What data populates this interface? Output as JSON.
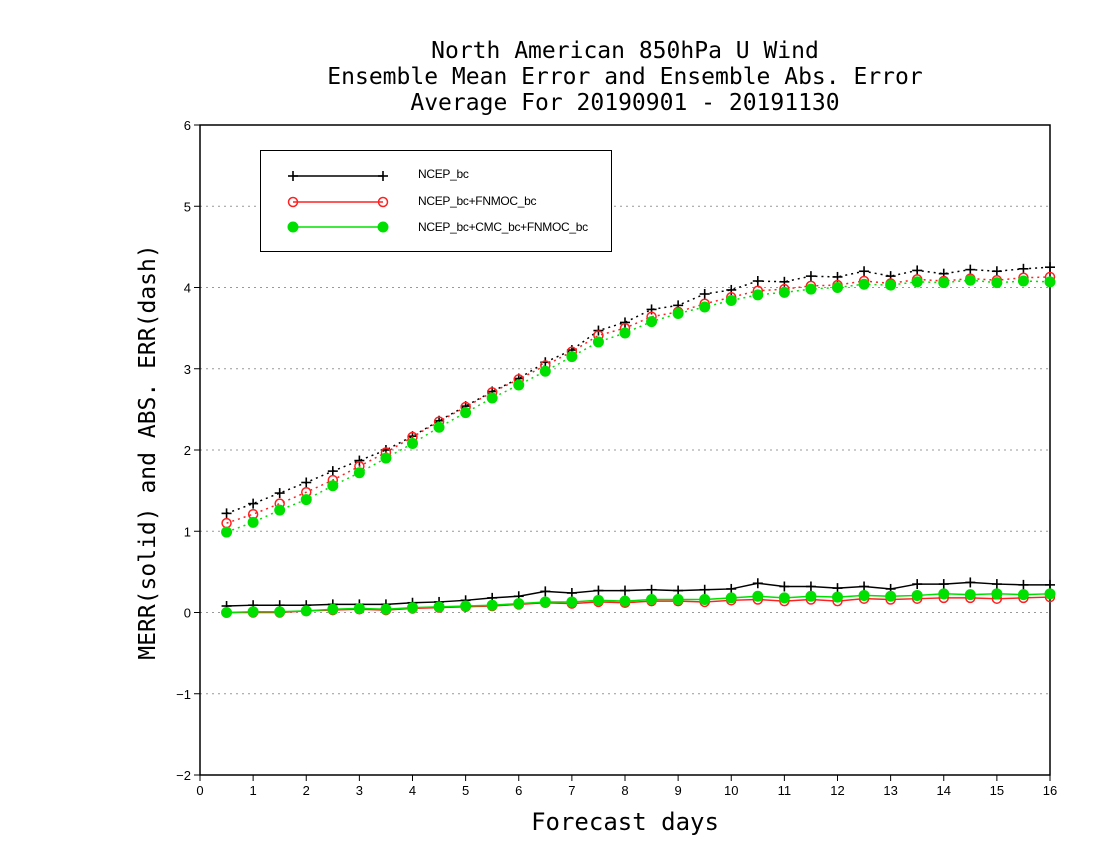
{
  "chart_data": {
    "type": "line",
    "title_lines": [
      "North American 850hPa U Wind",
      "Ensemble Mean Error and Ensemble Abs. Error",
      "Average For 20190901 - 20191130"
    ],
    "xlabel": "Forecast days",
    "ylabel": "MERR(solid) and ABS. ERR(dash)",
    "xlim": [
      0,
      16
    ],
    "ylim": [
      -2,
      6
    ],
    "x_ticks": [
      "0",
      "1",
      "2",
      "3",
      "4",
      "5",
      "6",
      "7",
      "8",
      "9",
      "10",
      "11",
      "12",
      "13",
      "14",
      "15",
      "16"
    ],
    "y_ticks": [
      "-2",
      "-1",
      "0",
      "1",
      "2",
      "3",
      "4",
      "5",
      "6"
    ],
    "grid": "horizontal dotted",
    "legend_position": "top-left",
    "x": [
      0.5,
      1,
      1.5,
      2,
      2.5,
      3,
      3.5,
      4,
      4.5,
      5,
      5.5,
      6,
      6.5,
      7,
      7.5,
      8,
      8.5,
      9,
      9.5,
      10,
      10.5,
      11,
      11.5,
      12,
      12.5,
      13,
      13.5,
      14,
      14.5,
      15,
      15.5,
      16
    ],
    "series": [
      {
        "name": "NCEP_bc",
        "color": "#000000",
        "marker": "plus",
        "merr": [
          0.08,
          0.09,
          0.09,
          0.09,
          0.1,
          0.1,
          0.1,
          0.12,
          0.13,
          0.15,
          0.18,
          0.2,
          0.26,
          0.24,
          0.27,
          0.27,
          0.28,
          0.27,
          0.28,
          0.29,
          0.36,
          0.32,
          0.32,
          0.3,
          0.32,
          0.29,
          0.35,
          0.35,
          0.37,
          0.35,
          0.34,
          0.34
        ],
        "abs_err": [
          1.22,
          1.34,
          1.47,
          1.6,
          1.74,
          1.87,
          2.0,
          2.17,
          2.36,
          2.54,
          2.72,
          2.88,
          3.08,
          3.23,
          3.47,
          3.57,
          3.73,
          3.78,
          3.92,
          3.97,
          4.08,
          4.07,
          4.14,
          4.13,
          4.2,
          4.14,
          4.21,
          4.17,
          4.22,
          4.2,
          4.23,
          4.25
        ]
      },
      {
        "name": "NCEP_bc+FNMOC_bc",
        "color": "#ff2020",
        "marker": "open-circle",
        "merr": [
          0.0,
          0.0,
          0.0,
          0.02,
          0.03,
          0.04,
          0.03,
          0.05,
          0.06,
          0.07,
          0.08,
          0.1,
          0.12,
          0.11,
          0.13,
          0.12,
          0.14,
          0.14,
          0.13,
          0.15,
          0.16,
          0.14,
          0.16,
          0.14,
          0.17,
          0.16,
          0.17,
          0.18,
          0.18,
          0.17,
          0.18,
          0.19
        ],
        "abs_err": [
          1.1,
          1.21,
          1.34,
          1.48,
          1.63,
          1.8,
          1.97,
          2.16,
          2.35,
          2.53,
          2.71,
          2.87,
          3.04,
          3.21,
          3.41,
          3.5,
          3.64,
          3.7,
          3.8,
          3.88,
          3.96,
          3.98,
          4.02,
          4.03,
          4.08,
          4.05,
          4.1,
          4.08,
          4.11,
          4.09,
          4.12,
          4.13
        ]
      },
      {
        "name": "NCEP_bc+CMC_bc+FNMOC_bc",
        "color": "#00e000",
        "marker": "filled-circle",
        "merr": [
          0.0,
          0.01,
          0.01,
          0.02,
          0.04,
          0.05,
          0.04,
          0.06,
          0.07,
          0.08,
          0.09,
          0.11,
          0.13,
          0.13,
          0.15,
          0.14,
          0.16,
          0.16,
          0.16,
          0.18,
          0.2,
          0.18,
          0.2,
          0.19,
          0.21,
          0.2,
          0.21,
          0.23,
          0.22,
          0.23,
          0.22,
          0.23
        ],
        "abs_err": [
          0.99,
          1.11,
          1.26,
          1.39,
          1.56,
          1.72,
          1.9,
          2.08,
          2.28,
          2.46,
          2.64,
          2.8,
          2.97,
          3.15,
          3.33,
          3.44,
          3.58,
          3.68,
          3.76,
          3.84,
          3.91,
          3.94,
          3.98,
          4.0,
          4.04,
          4.03,
          4.07,
          4.06,
          4.09,
          4.06,
          4.08,
          4.07
        ]
      }
    ]
  }
}
